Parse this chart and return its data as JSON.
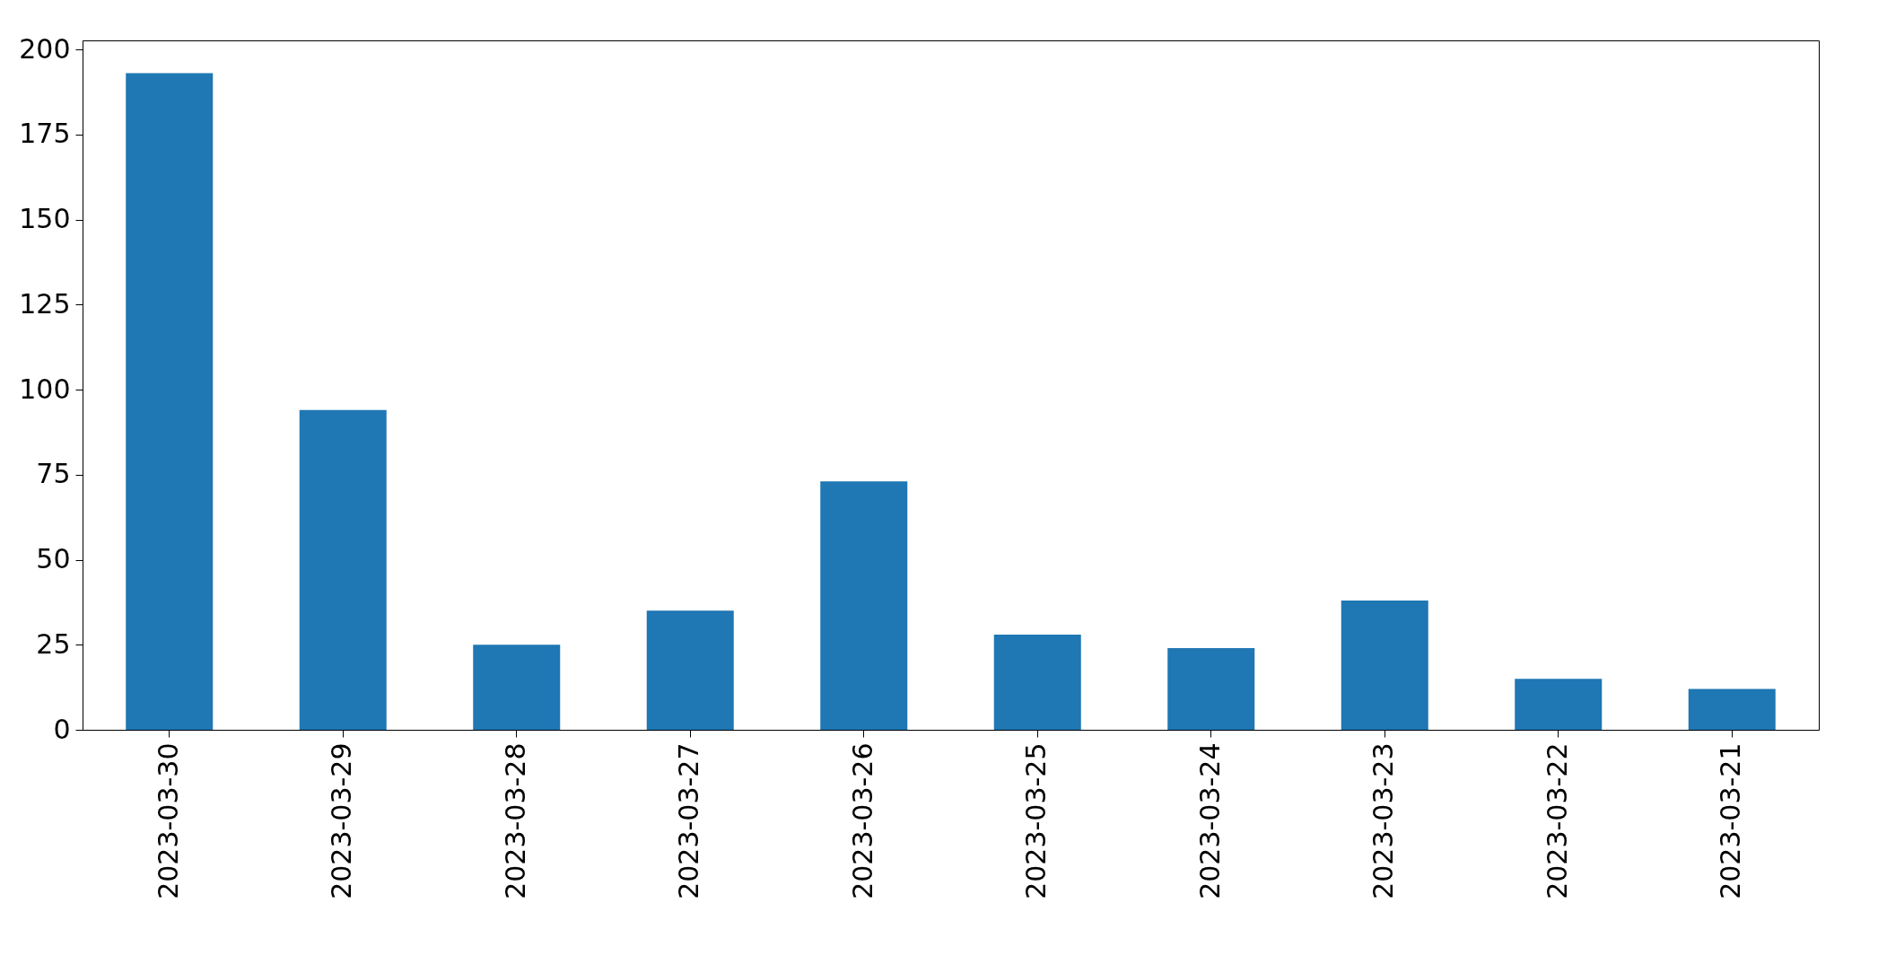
{
  "chart_data": {
    "type": "bar",
    "categories": [
      "2023-03-30",
      "2023-03-29",
      "2023-03-28",
      "2023-03-27",
      "2023-03-26",
      "2023-03-25",
      "2023-03-24",
      "2023-03-23",
      "2023-03-22",
      "2023-03-21"
    ],
    "values": [
      193,
      94,
      25,
      35,
      73,
      28,
      24,
      38,
      15,
      12
    ],
    "color": "#1f77b4",
    "ylim": [
      0,
      202.65
    ],
    "yticks": [
      0,
      25,
      50,
      75,
      100,
      125,
      150,
      175,
      200
    ],
    "grid": false
  }
}
